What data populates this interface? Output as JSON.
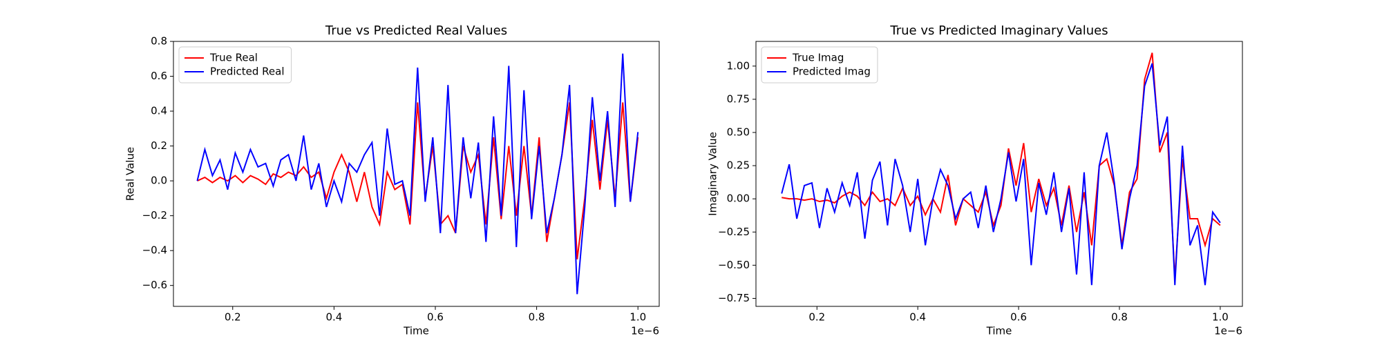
{
  "chart_data": [
    {
      "type": "line",
      "title": "True vs Predicted Real Values",
      "x_label": "Time",
      "y_label": "Real Value",
      "x_offset_label": "1e−6",
      "x": [
        0.13,
        0.145,
        0.16,
        0.175,
        0.19,
        0.205,
        0.22,
        0.235,
        0.25,
        0.265,
        0.28,
        0.295,
        0.31,
        0.325,
        0.34,
        0.355,
        0.37,
        0.385,
        0.4,
        0.415,
        0.43,
        0.445,
        0.46,
        0.475,
        0.49,
        0.505,
        0.52,
        0.535,
        0.55,
        0.565,
        0.58,
        0.595,
        0.61,
        0.625,
        0.64,
        0.655,
        0.67,
        0.685,
        0.7,
        0.715,
        0.73,
        0.745,
        0.76,
        0.775,
        0.79,
        0.805,
        0.82,
        0.835,
        0.85,
        0.865,
        0.88,
        0.895,
        0.91,
        0.925,
        0.94,
        0.955,
        0.97,
        0.985,
        1.0
      ],
      "series": [
        {
          "name": "True Real",
          "color": "#ff0000",
          "values": [
            0.0,
            0.02,
            -0.01,
            0.02,
            0.0,
            0.03,
            -0.01,
            0.03,
            0.01,
            -0.02,
            0.04,
            0.02,
            0.05,
            0.03,
            0.08,
            0.02,
            0.05,
            -0.1,
            0.05,
            0.15,
            0.05,
            -0.12,
            0.05,
            -0.15,
            -0.25,
            0.05,
            -0.05,
            -0.02,
            -0.25,
            0.45,
            -0.1,
            0.2,
            -0.25,
            -0.2,
            -0.3,
            0.2,
            0.05,
            0.15,
            -0.25,
            0.25,
            -0.22,
            0.2,
            -0.2,
            0.2,
            -0.2,
            0.25,
            -0.35,
            -0.1,
            0.15,
            0.45,
            -0.45,
            -0.1,
            0.35,
            -0.05,
            0.35,
            -0.1,
            0.45,
            -0.12,
            0.25
          ]
        },
        {
          "name": "Predicted Real",
          "color": "#0000ff",
          "values": [
            0.0,
            0.18,
            0.03,
            0.12,
            -0.05,
            0.16,
            0.05,
            0.18,
            0.08,
            0.1,
            -0.03,
            0.12,
            0.15,
            0.0,
            0.26,
            -0.05,
            0.1,
            -0.15,
            0.0,
            -0.12,
            0.1,
            0.05,
            0.15,
            0.22,
            -0.2,
            0.3,
            -0.02,
            0.0,
            -0.2,
            0.65,
            -0.12,
            0.25,
            -0.3,
            0.55,
            -0.3,
            0.25,
            -0.1,
            0.22,
            -0.35,
            0.37,
            -0.2,
            0.66,
            -0.38,
            0.52,
            -0.22,
            0.2,
            -0.3,
            -0.1,
            0.15,
            0.55,
            -0.65,
            -0.15,
            0.48,
            0.0,
            0.4,
            -0.15,
            0.73,
            -0.12,
            0.28
          ]
        }
      ],
      "xlim": [
        0.083,
        1.042
      ],
      "ylim": [
        -0.72,
        0.8
      ],
      "xticks": [
        0.2,
        0.4,
        0.6,
        0.8,
        {
          "value": 1.0,
          "label": "1.0"
        }
      ],
      "yticks": [
        {
          "value": -0.6,
          "label": "−0.6"
        },
        {
          "value": -0.4,
          "label": "−0.4"
        },
        {
          "value": -0.2,
          "label": "−0.2"
        },
        {
          "value": 0,
          "label": "0.0"
        },
        0.2,
        0.4,
        0.6,
        0.8
      ],
      "legend": "upper left"
    },
    {
      "type": "line",
      "title": "True vs Predicted Imaginary Values",
      "x_label": "Time",
      "y_label": "Imaginary Value",
      "x_offset_label": "1e−6",
      "x": [
        0.13,
        0.145,
        0.16,
        0.175,
        0.19,
        0.205,
        0.22,
        0.235,
        0.25,
        0.265,
        0.28,
        0.295,
        0.31,
        0.325,
        0.34,
        0.355,
        0.37,
        0.385,
        0.4,
        0.415,
        0.43,
        0.445,
        0.46,
        0.475,
        0.49,
        0.505,
        0.52,
        0.535,
        0.55,
        0.565,
        0.58,
        0.595,
        0.61,
        0.625,
        0.64,
        0.655,
        0.67,
        0.685,
        0.7,
        0.715,
        0.73,
        0.745,
        0.76,
        0.775,
        0.79,
        0.805,
        0.82,
        0.835,
        0.85,
        0.865,
        0.88,
        0.895,
        0.91,
        0.925,
        0.94,
        0.955,
        0.97,
        0.985,
        1.0
      ],
      "series": [
        {
          "name": "True Imag",
          "color": "#ff0000",
          "values": [
            0.01,
            0.0,
            0.0,
            -0.01,
            0.0,
            -0.02,
            -0.01,
            -0.03,
            0.02,
            0.05,
            0.02,
            -0.05,
            0.05,
            -0.02,
            0.0,
            -0.05,
            0.08,
            -0.05,
            0.02,
            -0.12,
            0.0,
            -0.1,
            0.18,
            -0.2,
            0.0,
            -0.05,
            -0.1,
            0.05,
            -0.2,
            -0.05,
            0.38,
            0.1,
            0.42,
            -0.1,
            0.15,
            -0.05,
            0.08,
            -0.2,
            0.1,
            -0.25,
            0.05,
            -0.35,
            0.25,
            0.3,
            0.1,
            -0.35,
            0.05,
            0.15,
            0.9,
            1.1,
            0.35,
            0.5,
            -0.6,
            0.3,
            -0.15,
            -0.15,
            -0.35,
            -0.15,
            -0.2
          ]
        },
        {
          "name": "Predicted Imag",
          "color": "#0000ff",
          "values": [
            0.04,
            0.26,
            -0.15,
            0.1,
            0.12,
            -0.22,
            0.08,
            -0.1,
            0.12,
            -0.05,
            0.2,
            -0.3,
            0.14,
            0.28,
            -0.2,
            0.3,
            0.1,
            -0.25,
            0.15,
            -0.35,
            0.0,
            0.22,
            0.1,
            -0.15,
            0.0,
            0.05,
            -0.22,
            0.1,
            -0.25,
            0.0,
            0.35,
            -0.02,
            0.3,
            -0.5,
            0.12,
            -0.12,
            0.2,
            -0.25,
            0.08,
            -0.57,
            0.2,
            -0.65,
            0.25,
            0.5,
            0.12,
            -0.38,
            0.0,
            0.25,
            0.85,
            1.02,
            0.4,
            0.62,
            -0.65,
            0.4,
            -0.35,
            -0.2,
            -0.65,
            -0.1,
            -0.18
          ]
        }
      ],
      "xlim": [
        0.079,
        1.044
      ],
      "ylim": [
        -0.81,
        1.186
      ],
      "xticks": [
        0.2,
        0.4,
        0.6,
        0.8,
        {
          "value": 1.0,
          "label": "1.0"
        }
      ],
      "yticks": [
        {
          "value": -0.75,
          "label": "−0.75"
        },
        {
          "value": -0.5,
          "label": "−0.50"
        },
        {
          "value": -0.25,
          "label": "−0.25"
        },
        {
          "value": 0,
          "label": "0.00"
        },
        {
          "value": 0.25,
          "label": "0.25"
        },
        {
          "value": 0.5,
          "label": "0.50"
        },
        {
          "value": 0.75,
          "label": "0.75"
        },
        {
          "value": 1.0,
          "label": "1.00"
        }
      ],
      "legend": "upper left"
    }
  ]
}
